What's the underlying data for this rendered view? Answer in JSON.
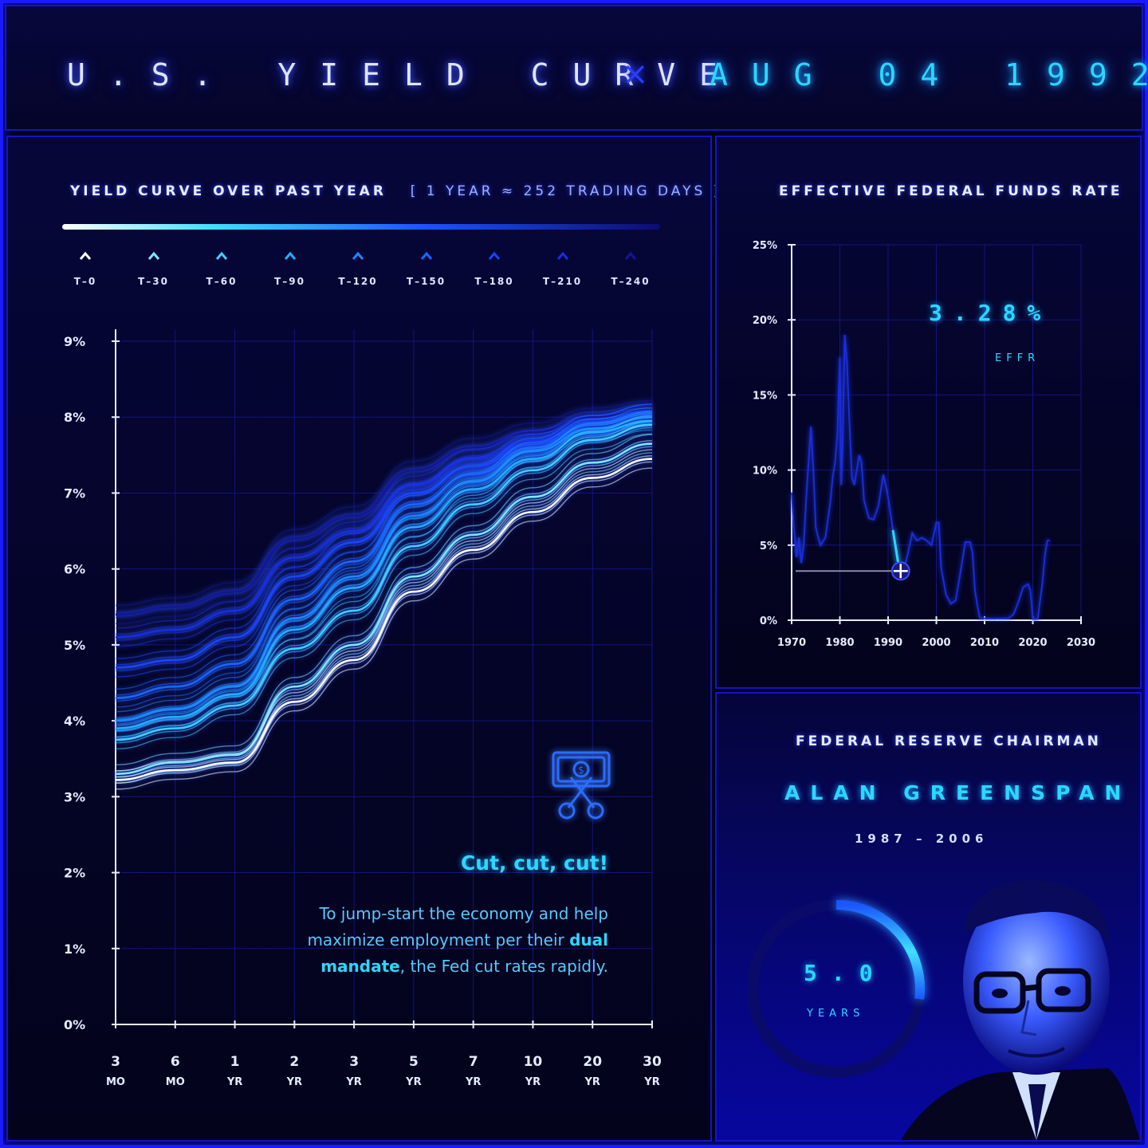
{
  "header": {
    "title": "U.S. YIELD CURVE",
    "separator": "×",
    "date": "AUG 04 1992"
  },
  "yield_panel": {
    "title": "YIELD CURVE OVER PAST YEAR",
    "subtitle": "[ 1 YEAR ≈ 252 TRADING DAYS ]",
    "legend": [
      {
        "label": "T–0",
        "color": "#ffffff"
      },
      {
        "label": "T–30",
        "color": "#7fe6ff"
      },
      {
        "label": "T–60",
        "color": "#3fd0ff"
      },
      {
        "label": "T–90",
        "color": "#20b0ff"
      },
      {
        "label": "T–120",
        "color": "#1a88ff"
      },
      {
        "label": "T–150",
        "color": "#1a66ff"
      },
      {
        "label": "T–180",
        "color": "#1a44ff"
      },
      {
        "label": "T–210",
        "color": "#1a2ce0"
      },
      {
        "label": "T–240",
        "color": "#14149a"
      }
    ],
    "annotation": {
      "title": "Cut, cut, cut!",
      "body_before": "To jump-start the economy and help maximize employment per their ",
      "body_bold": "dual mandate",
      "body_after": ", the Fed cut rates rapidly.",
      "icon": "scissors-dollar-icon"
    }
  },
  "effr_panel": {
    "title": "EFFECTIVE FEDERAL FUNDS RATE",
    "current_value": "3.28%",
    "current_label": "EFFR"
  },
  "chair_panel": {
    "label": "FEDERAL RESERVE CHAIRMAN",
    "name": "ALAN GREENSPAN",
    "years": "1987 – 2006",
    "tenure_value": "5.0",
    "tenure_unit": "YEARS",
    "tenure_fraction": 0.27,
    "portrait": "portrait-icon"
  },
  "chart_data": [
    {
      "type": "line",
      "ylim": [
        0,
        9
      ],
      "y_ticks": [
        "0%",
        "1%",
        "2%",
        "3%",
        "4%",
        "5%",
        "6%",
        "7%",
        "8%",
        "9%"
      ],
      "categories": [
        {
          "top": "3",
          "bottom": "MO"
        },
        {
          "top": "6",
          "bottom": "MO"
        },
        {
          "top": "1",
          "bottom": "YR"
        },
        {
          "top": "2",
          "bottom": "YR"
        },
        {
          "top": "3",
          "bottom": "YR"
        },
        {
          "top": "5",
          "bottom": "YR"
        },
        {
          "top": "7",
          "bottom": "YR"
        },
        {
          "top": "10",
          "bottom": "YR"
        },
        {
          "top": "20",
          "bottom": "YR"
        },
        {
          "top": "30",
          "bottom": "YR"
        }
      ],
      "series": [
        {
          "lag": "T–240",
          "values": [
            5.4,
            5.5,
            5.7,
            6.4,
            6.7,
            7.3,
            7.6,
            7.8,
            8.0,
            8.1
          ]
        },
        {
          "lag": "T–210",
          "values": [
            5.1,
            5.2,
            5.45,
            6.15,
            6.5,
            7.1,
            7.45,
            7.7,
            7.95,
            8.05
          ]
        },
        {
          "lag": "T–180",
          "values": [
            4.7,
            4.8,
            5.1,
            5.9,
            6.35,
            7.0,
            7.35,
            7.65,
            7.9,
            8.05
          ]
        },
        {
          "lag": "T–150",
          "values": [
            4.3,
            4.45,
            4.75,
            5.6,
            6.1,
            6.85,
            7.25,
            7.6,
            7.9,
            8.05
          ]
        },
        {
          "lag": "T–120",
          "values": [
            4.0,
            4.15,
            4.45,
            5.35,
            5.9,
            6.7,
            7.15,
            7.55,
            7.85,
            8.0
          ]
        },
        {
          "lag": "T–90",
          "values": [
            3.9,
            4.05,
            4.35,
            5.2,
            5.75,
            6.55,
            7.05,
            7.45,
            7.8,
            7.95
          ]
        },
        {
          "lag": "T–60",
          "values": [
            3.75,
            3.9,
            4.2,
            4.95,
            5.45,
            6.3,
            6.85,
            7.3,
            7.7,
            7.9
          ]
        },
        {
          "lag": "T–30",
          "values": [
            3.3,
            3.45,
            3.55,
            4.45,
            5.0,
            5.9,
            6.45,
            6.95,
            7.4,
            7.65
          ]
        },
        {
          "lag": "T–0",
          "values": [
            3.22,
            3.35,
            3.45,
            4.25,
            4.8,
            5.7,
            6.25,
            6.75,
            7.2,
            7.45
          ]
        }
      ]
    },
    {
      "type": "line",
      "xlim": [
        1970,
        2030
      ],
      "ylim": [
        0,
        25
      ],
      "x_ticks": [
        "1970",
        "1980",
        "1990",
        "2000",
        "2010",
        "2020",
        "2030"
      ],
      "y_ticks": [
        "0%",
        "5%",
        "10%",
        "15%",
        "20%",
        "25%"
      ],
      "series": [
        {
          "name": "EFFR",
          "x": [
            1970,
            1970.5,
            1971,
            1971.5,
            1972,
            1972.5,
            1973,
            1973.5,
            1974,
            1974.5,
            1975,
            1975.5,
            1976,
            1977,
            1978,
            1978.5,
            1979,
            1979.5,
            1980,
            1980.3,
            1980.6,
            1981,
            1981.5,
            1982,
            1982.5,
            1983,
            1984,
            1984.5,
            1985,
            1986,
            1987,
            1988,
            1989,
            1989.5,
            1990,
            1991,
            1991.5,
            1992,
            1992.6,
            1993,
            1994,
            1995,
            1996,
            1997,
            1998,
            1999,
            2000,
            2000.5,
            2001,
            2002,
            2003,
            2004,
            2005,
            2006,
            2007,
            2007.5,
            2008,
            2008.5,
            2009,
            2012,
            2015,
            2016,
            2017,
            2018,
            2019,
            2019.5,
            2020,
            2020.5,
            2021,
            2022,
            2022.5,
            2023,
            2023.5
          ],
          "y": [
            8.5,
            6.0,
            4.2,
            5.5,
            3.8,
            5.0,
            8.0,
            10.5,
            12.9,
            10.0,
            6.2,
            5.5,
            5.0,
            5.5,
            7.8,
            9.5,
            10.5,
            12.5,
            17.5,
            9.0,
            12.0,
            19.0,
            17.0,
            13.0,
            9.5,
            9.0,
            11.0,
            10.5,
            8.0,
            6.8,
            6.7,
            7.6,
            9.7,
            9.0,
            8.2,
            6.0,
            5.0,
            4.0,
            3.28,
            3.0,
            4.3,
            5.8,
            5.3,
            5.5,
            5.3,
            5.0,
            6.5,
            6.5,
            3.5,
            1.7,
            1.1,
            1.3,
            3.2,
            5.2,
            5.2,
            4.5,
            2.0,
            1.0,
            0.15,
            0.1,
            0.13,
            0.4,
            1.2,
            2.2,
            2.4,
            2.0,
            0.08,
            0.08,
            0.08,
            2.5,
            4.3,
            5.3,
            5.33
          ],
          "highlight_x": [
            1991.6,
            1992.6
          ]
        },
        {
          "name": "current",
          "x": [
            1992.6
          ],
          "y": [
            3.28
          ]
        }
      ]
    }
  ]
}
